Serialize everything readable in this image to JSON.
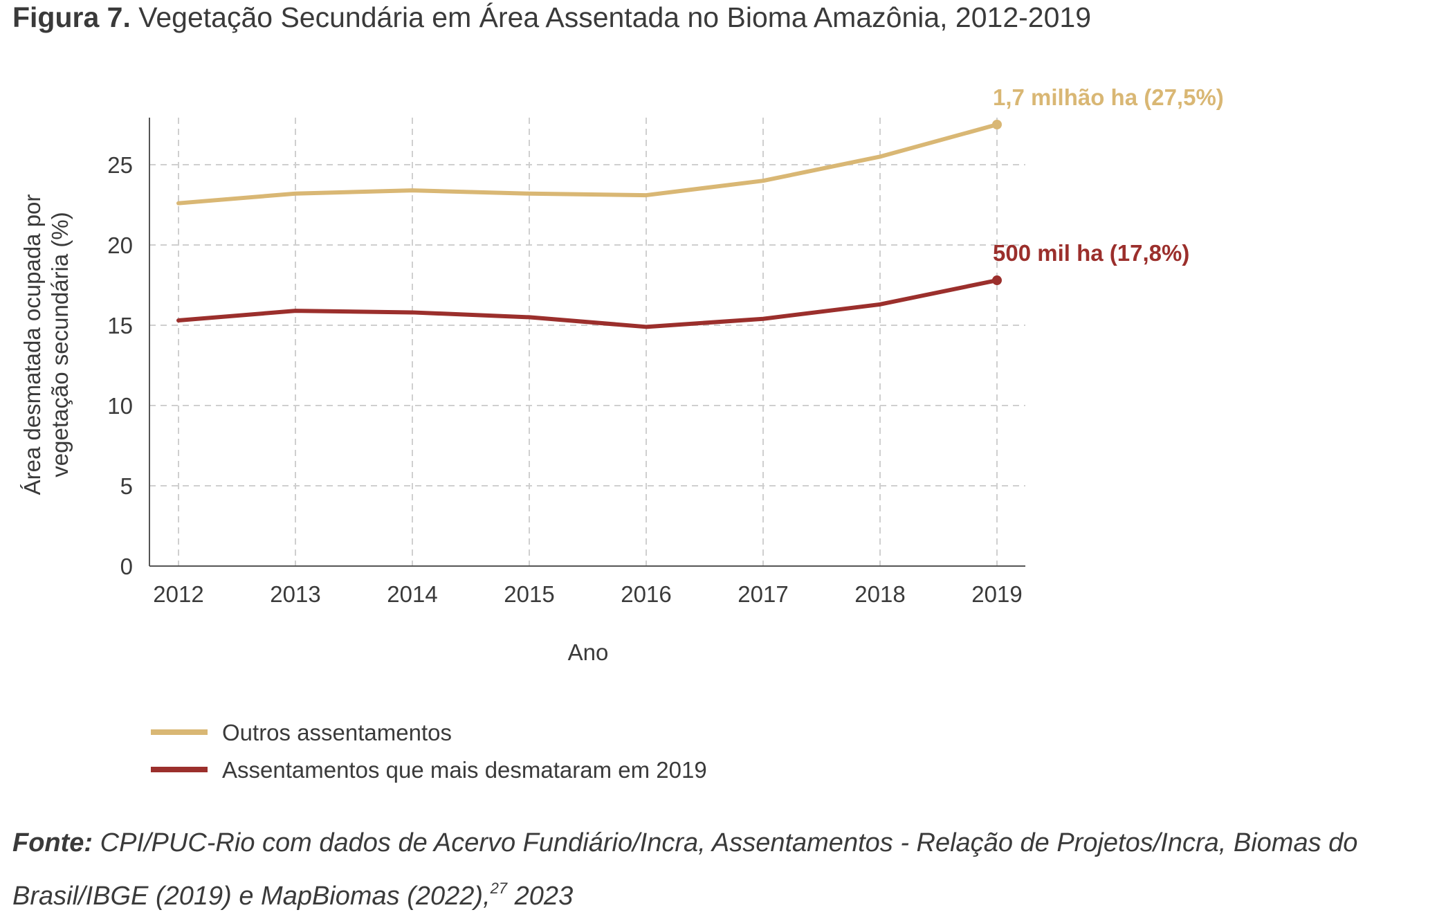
{
  "title": {
    "figure_label": "Figura 7.",
    "text": "Vegetação Secundária em Área Assentada no Bioma Amazônia, 2012-2019"
  },
  "chart_data": {
    "type": "line",
    "x": [
      2012,
      2013,
      2014,
      2015,
      2016,
      2017,
      2018,
      2019
    ],
    "xlabel": "Ano",
    "ylabel_lines": [
      "Área desmatada ocupada por",
      "vegetação secundária (%)"
    ],
    "ylim": [
      0,
      28
    ],
    "yticks": [
      0,
      5,
      10,
      15,
      20,
      25
    ],
    "grid": true,
    "legend_position": "bottom-left",
    "series": [
      {
        "name": "Outros assentamentos",
        "color": "#d9b774",
        "values": [
          22.6,
          23.2,
          23.4,
          23.2,
          23.1,
          24.0,
          25.5,
          27.5
        ],
        "end_label": "1,7 milhão ha (27,5%)"
      },
      {
        "name": "Assentamentos que mais desmataram em 2019",
        "color": "#9b2f2c",
        "values": [
          15.3,
          15.9,
          15.8,
          15.5,
          14.9,
          15.4,
          16.3,
          17.8
        ],
        "end_label": "500 mil ha (17,8%)"
      }
    ]
  },
  "source": {
    "label": "Fonte:",
    "text": "CPI/PUC-Rio com dados de Acervo Fundiário/Incra, Assentamentos - Relação de Projetos/Incra, Biomas do Brasil/IBGE (2019) e MapBiomas (2022),",
    "footnote": "27",
    "year": " 2023"
  }
}
